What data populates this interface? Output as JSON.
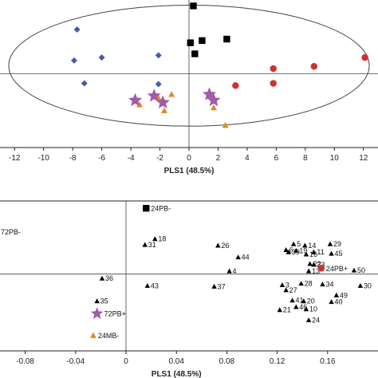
{
  "colors": {
    "blue": "#4a5aa8",
    "black": "#000000",
    "red": "#d2302a",
    "orange": "#e08a20",
    "purple": "#a35aa8"
  },
  "chart_data": [
    {
      "type": "scatter",
      "title": "",
      "xlabel": "PLS1 (48.5%)",
      "ylabel": "",
      "xlim": [
        -13,
        13
      ],
      "ylim": [
        -1,
        1
      ],
      "grid": false,
      "xticks": [
        -12,
        -10,
        -8,
        -6,
        -4,
        -2,
        0,
        2,
        4,
        6,
        8,
        10,
        12
      ],
      "xtick_labels": [
        "-12",
        "-10",
        "-8",
        "-6",
        "-4",
        "-2",
        "0",
        "2",
        "4",
        "6",
        "8",
        "10",
        "12"
      ],
      "ellipse": {
        "center": [
          0,
          0.11
        ],
        "rx": 12.4,
        "ry": 0.82
      },
      "series": [
        {
          "marker": "diamond",
          "color_key": "blue",
          "x": [
            -7.7,
            -7.9,
            -6,
            -2.1,
            -7.2,
            -2.1
          ],
          "y": [
            0.6,
            0.18,
            0.22,
            0.25,
            -0.13,
            -0.14
          ]
        },
        {
          "marker": "square",
          "color_key": "black",
          "x": [
            0.3,
            0.1,
            0.9,
            2.6,
            0.4
          ],
          "y": [
            0.92,
            0.42,
            0.45,
            0.47,
            0.27
          ]
        },
        {
          "marker": "circle",
          "color_key": "red",
          "x": [
            12.1,
            8.6,
            5.8,
            5.8,
            3.2
          ],
          "y": [
            0.22,
            0.1,
            0.07,
            -0.13,
            -0.16
          ]
        },
        {
          "marker": "triangle",
          "color_key": "orange",
          "x": [
            -3.4,
            -2.1,
            -1.2,
            -1.7,
            1.7,
            2.5
          ],
          "y": [
            -0.42,
            -0.33,
            -0.28,
            -0.5,
            -0.46,
            -0.7
          ]
        },
        {
          "marker": "star",
          "color_key": "purple",
          "x": [
            -3.7,
            -2.4,
            -1.8,
            1.4,
            1.7
          ],
          "y": [
            -0.36,
            -0.3,
            -0.39,
            -0.28,
            -0.36
          ]
        }
      ]
    },
    {
      "type": "scatter",
      "title": "",
      "xlabel": "PLS1 (48.5%)",
      "ylabel": "",
      "xlim": [
        -0.1,
        0.2
      ],
      "ylim": [
        -1.05,
        1.0
      ],
      "grid": false,
      "xticks": [
        -0.08,
        -0.04,
        0,
        0.04,
        0.08,
        0.12,
        0.16
      ],
      "xtick_labels": [
        "-0.08",
        "-0.04",
        "0",
        "0.04",
        "0.08",
        "0.12",
        "0.16"
      ],
      "labeled_markers": [
        {
          "label": "24PB-",
          "marker": "square",
          "color_key": "black",
          "x": 0.016,
          "y": 0.9
        },
        {
          "label": "24PB+",
          "marker": "circle",
          "color_key": "red",
          "x": 0.155,
          "y": 0.08
        },
        {
          "label": "72PB+",
          "marker": "star",
          "color_key": "purple",
          "x": -0.023,
          "y": -0.54
        },
        {
          "label": "24MB-",
          "marker": "triangle",
          "color_key": "orange",
          "x": -0.026,
          "y": -0.84
        }
      ],
      "edge_labels": [
        {
          "label": "72PB-",
          "color_key": "blue",
          "x": -0.1,
          "y": 0.58
        }
      ],
      "variables": [
        {
          "label": "18",
          "x": 0.023,
          "y": 0.48
        },
        {
          "label": "31",
          "x": 0.015,
          "y": 0.4
        },
        {
          "label": "26",
          "x": 0.073,
          "y": 0.39
        },
        {
          "label": "44",
          "x": 0.089,
          "y": 0.23
        },
        {
          "label": "4",
          "x": 0.082,
          "y": 0.04
        },
        {
          "label": "36",
          "x": -0.019,
          "y": -0.06
        },
        {
          "label": "43",
          "x": 0.017,
          "y": -0.16
        },
        {
          "label": "37",
          "x": 0.07,
          "y": -0.17
        },
        {
          "label": "35",
          "x": -0.023,
          "y": -0.37
        },
        {
          "label": "5",
          "x": 0.133,
          "y": 0.41
        },
        {
          "label": "14",
          "x": 0.142,
          "y": 0.39
        },
        {
          "label": "29",
          "x": 0.162,
          "y": 0.41
        },
        {
          "label": "6",
          "x": 0.127,
          "y": 0.33
        },
        {
          "label": "19",
          "x": 0.135,
          "y": 0.32
        },
        {
          "label": "16",
          "x": 0.143,
          "y": 0.27
        },
        {
          "label": "39",
          "x": 0.129,
          "y": 0.3
        },
        {
          "label": "11",
          "x": 0.149,
          "y": 0.3
        },
        {
          "label": "45",
          "x": 0.163,
          "y": 0.28
        },
        {
          "label": "22",
          "x": 0.146,
          "y": 0.14
        },
        {
          "label": "33",
          "x": 0.149,
          "y": 0.13
        },
        {
          "label": "13",
          "x": 0.145,
          "y": 0.04
        },
        {
          "label": "50",
          "x": 0.181,
          "y": 0.05
        },
        {
          "label": "3",
          "x": 0.124,
          "y": -0.15
        },
        {
          "label": "27",
          "x": 0.127,
          "y": -0.22
        },
        {
          "label": "28",
          "x": 0.139,
          "y": -0.13
        },
        {
          "label": "34",
          "x": 0.156,
          "y": -0.14
        },
        {
          "label": "30",
          "x": 0.186,
          "y": -0.16
        },
        {
          "label": "49",
          "x": 0.167,
          "y": -0.29
        },
        {
          "label": "41",
          "x": 0.132,
          "y": -0.36
        },
        {
          "label": "20",
          "x": 0.141,
          "y": -0.37
        },
        {
          "label": "46",
          "x": 0.135,
          "y": -0.45
        },
        {
          "label": "10",
          "x": 0.143,
          "y": -0.48
        },
        {
          "label": "40",
          "x": 0.163,
          "y": -0.38
        },
        {
          "label": "21",
          "x": 0.122,
          "y": -0.49
        },
        {
          "label": "24",
          "x": 0.145,
          "y": -0.63
        }
      ]
    }
  ]
}
